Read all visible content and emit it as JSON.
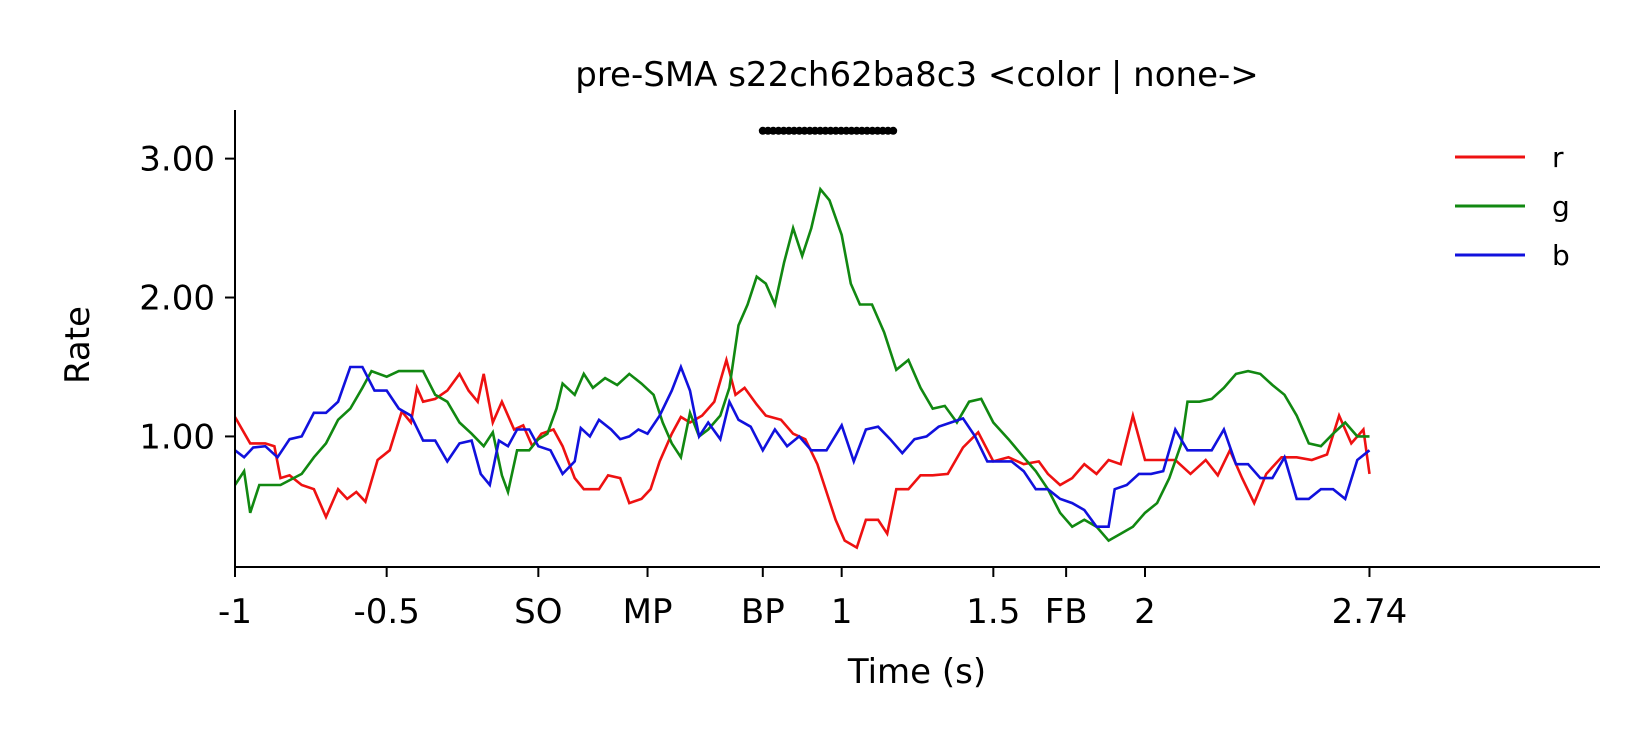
{
  "chart_data": {
    "type": "line",
    "title": "pre-SMA s22ch62ba8c3 <color | none->",
    "xlabel": "Time (s)",
    "ylabel": "Rate",
    "xlim": [
      -1,
      3.5
    ],
    "ylim": [
      0.06,
      3.35
    ],
    "x_ticks": [
      {
        "value": -1,
        "label": "-1"
      },
      {
        "value": -0.5,
        "label": "-0.5"
      },
      {
        "value": 0,
        "label": "SO"
      },
      {
        "value": 0.36,
        "label": "MP"
      },
      {
        "value": 0.74,
        "label": "BP"
      },
      {
        "value": 1,
        "label": "1"
      },
      {
        "value": 1.5,
        "label": "1.5"
      },
      {
        "value": 1.74,
        "label": "FB"
      },
      {
        "value": 2,
        "label": "2"
      },
      {
        "value": 2.74,
        "label": "2.74"
      }
    ],
    "y_ticks": [
      {
        "value": 1.0,
        "label": "1.00"
      },
      {
        "value": 2.0,
        "label": "2.00"
      },
      {
        "value": 3.0,
        "label": "3.00"
      }
    ],
    "grid": false,
    "legend_position": "top-right",
    "significance": {
      "x_start": 0.74,
      "x_end": 1.17,
      "y": 3.2
    },
    "series": [
      {
        "name": "r",
        "color": "#ee1111",
        "points": [
          [
            -1.0,
            1.14
          ],
          [
            -0.95,
            0.95
          ],
          [
            -0.9,
            0.95
          ],
          [
            -0.87,
            0.93
          ],
          [
            -0.85,
            0.7
          ],
          [
            -0.82,
            0.72
          ],
          [
            -0.78,
            0.65
          ],
          [
            -0.74,
            0.62
          ],
          [
            -0.7,
            0.42
          ],
          [
            -0.66,
            0.62
          ],
          [
            -0.63,
            0.55
          ],
          [
            -0.6,
            0.6
          ],
          [
            -0.57,
            0.53
          ],
          [
            -0.53,
            0.83
          ],
          [
            -0.49,
            0.9
          ],
          [
            -0.45,
            1.18
          ],
          [
            -0.42,
            1.1
          ],
          [
            -0.4,
            1.35
          ],
          [
            -0.38,
            1.25
          ],
          [
            -0.34,
            1.27
          ],
          [
            -0.3,
            1.33
          ],
          [
            -0.26,
            1.45
          ],
          [
            -0.23,
            1.33
          ],
          [
            -0.2,
            1.25
          ],
          [
            -0.18,
            1.45
          ],
          [
            -0.15,
            1.1
          ],
          [
            -0.12,
            1.25
          ],
          [
            -0.08,
            1.05
          ],
          [
            -0.05,
            1.08
          ],
          [
            -0.02,
            0.93
          ],
          [
            0.01,
            1.02
          ],
          [
            0.05,
            1.05
          ],
          [
            0.08,
            0.93
          ],
          [
            0.12,
            0.7
          ],
          [
            0.15,
            0.62
          ],
          [
            0.2,
            0.62
          ],
          [
            0.23,
            0.72
          ],
          [
            0.27,
            0.7
          ],
          [
            0.3,
            0.52
          ],
          [
            0.34,
            0.55
          ],
          [
            0.37,
            0.62
          ],
          [
            0.4,
            0.82
          ],
          [
            0.44,
            1.02
          ],
          [
            0.47,
            1.14
          ],
          [
            0.5,
            1.1
          ],
          [
            0.54,
            1.15
          ],
          [
            0.58,
            1.25
          ],
          [
            0.62,
            1.55
          ],
          [
            0.65,
            1.3
          ],
          [
            0.68,
            1.35
          ],
          [
            0.72,
            1.23
          ],
          [
            0.75,
            1.15
          ],
          [
            0.8,
            1.12
          ],
          [
            0.84,
            1.02
          ],
          [
            0.88,
            0.98
          ],
          [
            0.92,
            0.8
          ],
          [
            0.95,
            0.6
          ],
          [
            0.98,
            0.4
          ],
          [
            1.01,
            0.25
          ],
          [
            1.05,
            0.2
          ],
          [
            1.08,
            0.4
          ],
          [
            1.12,
            0.4
          ],
          [
            1.15,
            0.3
          ],
          [
            1.18,
            0.62
          ],
          [
            1.22,
            0.62
          ],
          [
            1.26,
            0.72
          ],
          [
            1.3,
            0.72
          ],
          [
            1.35,
            0.73
          ],
          [
            1.4,
            0.92
          ],
          [
            1.45,
            1.03
          ],
          [
            1.5,
            0.82
          ],
          [
            1.55,
            0.85
          ],
          [
            1.6,
            0.8
          ],
          [
            1.65,
            0.82
          ],
          [
            1.68,
            0.73
          ],
          [
            1.72,
            0.65
          ],
          [
            1.76,
            0.7
          ],
          [
            1.8,
            0.8
          ],
          [
            1.84,
            0.73
          ],
          [
            1.88,
            0.83
          ],
          [
            1.92,
            0.8
          ],
          [
            1.96,
            1.15
          ],
          [
            2.0,
            0.83
          ],
          [
            2.05,
            0.83
          ],
          [
            2.1,
            0.83
          ],
          [
            2.15,
            0.73
          ],
          [
            2.2,
            0.83
          ],
          [
            2.24,
            0.72
          ],
          [
            2.28,
            0.9
          ],
          [
            2.32,
            0.7
          ],
          [
            2.36,
            0.52
          ],
          [
            2.4,
            0.73
          ],
          [
            2.45,
            0.85
          ],
          [
            2.5,
            0.85
          ],
          [
            2.55,
            0.83
          ],
          [
            2.6,
            0.87
          ],
          [
            2.64,
            1.15
          ],
          [
            2.68,
            0.95
          ],
          [
            2.72,
            1.05
          ],
          [
            2.74,
            0.73
          ]
        ]
      },
      {
        "name": "g",
        "color": "#118811",
        "points": [
          [
            -1.0,
            0.65
          ],
          [
            -0.97,
            0.75
          ],
          [
            -0.95,
            0.45
          ],
          [
            -0.92,
            0.65
          ],
          [
            -0.85,
            0.65
          ],
          [
            -0.78,
            0.73
          ],
          [
            -0.74,
            0.85
          ],
          [
            -0.7,
            0.95
          ],
          [
            -0.66,
            1.12
          ],
          [
            -0.62,
            1.2
          ],
          [
            -0.58,
            1.35
          ],
          [
            -0.55,
            1.47
          ],
          [
            -0.5,
            1.43
          ],
          [
            -0.46,
            1.47
          ],
          [
            -0.42,
            1.47
          ],
          [
            -0.38,
            1.47
          ],
          [
            -0.34,
            1.3
          ],
          [
            -0.3,
            1.25
          ],
          [
            -0.26,
            1.1
          ],
          [
            -0.22,
            1.02
          ],
          [
            -0.18,
            0.93
          ],
          [
            -0.15,
            1.03
          ],
          [
            -0.12,
            0.72
          ],
          [
            -0.1,
            0.6
          ],
          [
            -0.07,
            0.9
          ],
          [
            -0.03,
            0.9
          ],
          [
            0.0,
            0.98
          ],
          [
            0.03,
            1.02
          ],
          [
            0.06,
            1.2
          ],
          [
            0.08,
            1.38
          ],
          [
            0.12,
            1.3
          ],
          [
            0.15,
            1.45
          ],
          [
            0.18,
            1.35
          ],
          [
            0.22,
            1.42
          ],
          [
            0.26,
            1.37
          ],
          [
            0.3,
            1.45
          ],
          [
            0.34,
            1.38
          ],
          [
            0.38,
            1.3
          ],
          [
            0.41,
            1.1
          ],
          [
            0.44,
            0.95
          ],
          [
            0.47,
            0.85
          ],
          [
            0.5,
            1.17
          ],
          [
            0.53,
            1.0
          ],
          [
            0.56,
            1.05
          ],
          [
            0.6,
            1.15
          ],
          [
            0.63,
            1.35
          ],
          [
            0.66,
            1.8
          ],
          [
            0.69,
            1.95
          ],
          [
            0.72,
            2.15
          ],
          [
            0.75,
            2.1
          ],
          [
            0.78,
            1.95
          ],
          [
            0.81,
            2.25
          ],
          [
            0.84,
            2.5
          ],
          [
            0.87,
            2.3
          ],
          [
            0.9,
            2.5
          ],
          [
            0.93,
            2.78
          ],
          [
            0.96,
            2.7
          ],
          [
            1.0,
            2.45
          ],
          [
            1.03,
            2.1
          ],
          [
            1.06,
            1.95
          ],
          [
            1.1,
            1.95
          ],
          [
            1.14,
            1.75
          ],
          [
            1.18,
            1.48
          ],
          [
            1.22,
            1.55
          ],
          [
            1.26,
            1.35
          ],
          [
            1.3,
            1.2
          ],
          [
            1.34,
            1.22
          ],
          [
            1.38,
            1.1
          ],
          [
            1.42,
            1.25
          ],
          [
            1.46,
            1.27
          ],
          [
            1.5,
            1.1
          ],
          [
            1.55,
            0.98
          ],
          [
            1.6,
            0.85
          ],
          [
            1.64,
            0.75
          ],
          [
            1.68,
            0.62
          ],
          [
            1.72,
            0.45
          ],
          [
            1.76,
            0.35
          ],
          [
            1.8,
            0.4
          ],
          [
            1.84,
            0.35
          ],
          [
            1.88,
            0.25
          ],
          [
            1.92,
            0.3
          ],
          [
            1.96,
            0.35
          ],
          [
            2.0,
            0.45
          ],
          [
            2.04,
            0.52
          ],
          [
            2.08,
            0.7
          ],
          [
            2.12,
            0.95
          ],
          [
            2.14,
            1.25
          ],
          [
            2.18,
            1.25
          ],
          [
            2.22,
            1.27
          ],
          [
            2.26,
            1.35
          ],
          [
            2.3,
            1.45
          ],
          [
            2.34,
            1.47
          ],
          [
            2.38,
            1.45
          ],
          [
            2.42,
            1.37
          ],
          [
            2.46,
            1.3
          ],
          [
            2.5,
            1.15
          ],
          [
            2.54,
            0.95
          ],
          [
            2.58,
            0.93
          ],
          [
            2.62,
            1.02
          ],
          [
            2.66,
            1.1
          ],
          [
            2.7,
            1.0
          ],
          [
            2.74,
            1.0
          ]
        ]
      },
      {
        "name": "b",
        "color": "#1111dd",
        "points": [
          [
            -1.0,
            0.9
          ],
          [
            -0.97,
            0.85
          ],
          [
            -0.94,
            0.92
          ],
          [
            -0.9,
            0.93
          ],
          [
            -0.86,
            0.85
          ],
          [
            -0.82,
            0.98
          ],
          [
            -0.78,
            1.0
          ],
          [
            -0.74,
            1.17
          ],
          [
            -0.7,
            1.17
          ],
          [
            -0.66,
            1.25
          ],
          [
            -0.62,
            1.5
          ],
          [
            -0.58,
            1.5
          ],
          [
            -0.54,
            1.33
          ],
          [
            -0.5,
            1.33
          ],
          [
            -0.46,
            1.2
          ],
          [
            -0.42,
            1.15
          ],
          [
            -0.38,
            0.97
          ],
          [
            -0.34,
            0.97
          ],
          [
            -0.3,
            0.82
          ],
          [
            -0.26,
            0.95
          ],
          [
            -0.22,
            0.97
          ],
          [
            -0.19,
            0.73
          ],
          [
            -0.16,
            0.65
          ],
          [
            -0.13,
            0.97
          ],
          [
            -0.1,
            0.93
          ],
          [
            -0.07,
            1.05
          ],
          [
            -0.03,
            1.05
          ],
          [
            0.0,
            0.93
          ],
          [
            0.04,
            0.9
          ],
          [
            0.08,
            0.73
          ],
          [
            0.12,
            0.82
          ],
          [
            0.14,
            1.06
          ],
          [
            0.17,
            1.0
          ],
          [
            0.2,
            1.12
          ],
          [
            0.24,
            1.05
          ],
          [
            0.27,
            0.98
          ],
          [
            0.3,
            1.0
          ],
          [
            0.33,
            1.05
          ],
          [
            0.36,
            1.02
          ],
          [
            0.4,
            1.15
          ],
          [
            0.44,
            1.33
          ],
          [
            0.47,
            1.5
          ],
          [
            0.5,
            1.33
          ],
          [
            0.53,
            1.0
          ],
          [
            0.56,
            1.1
          ],
          [
            0.6,
            0.98
          ],
          [
            0.63,
            1.25
          ],
          [
            0.66,
            1.12
          ],
          [
            0.7,
            1.07
          ],
          [
            0.74,
            0.9
          ],
          [
            0.78,
            1.05
          ],
          [
            0.82,
            0.93
          ],
          [
            0.86,
            1.0
          ],
          [
            0.9,
            0.9
          ],
          [
            0.95,
            0.9
          ],
          [
            1.0,
            1.08
          ],
          [
            1.04,
            0.82
          ],
          [
            1.08,
            1.05
          ],
          [
            1.12,
            1.07
          ],
          [
            1.16,
            0.98
          ],
          [
            1.2,
            0.88
          ],
          [
            1.24,
            0.98
          ],
          [
            1.28,
            1.0
          ],
          [
            1.32,
            1.07
          ],
          [
            1.36,
            1.1
          ],
          [
            1.4,
            1.13
          ],
          [
            1.44,
            1.0
          ],
          [
            1.48,
            0.82
          ],
          [
            1.52,
            0.82
          ],
          [
            1.56,
            0.82
          ],
          [
            1.6,
            0.75
          ],
          [
            1.64,
            0.62
          ],
          [
            1.68,
            0.62
          ],
          [
            1.72,
            0.55
          ],
          [
            1.76,
            0.52
          ],
          [
            1.8,
            0.47
          ],
          [
            1.84,
            0.35
          ],
          [
            1.88,
            0.35
          ],
          [
            1.9,
            0.62
          ],
          [
            1.94,
            0.65
          ],
          [
            1.98,
            0.73
          ],
          [
            2.02,
            0.73
          ],
          [
            2.06,
            0.75
          ],
          [
            2.1,
            1.05
          ],
          [
            2.14,
            0.9
          ],
          [
            2.18,
            0.9
          ],
          [
            2.22,
            0.9
          ],
          [
            2.26,
            1.05
          ],
          [
            2.3,
            0.8
          ],
          [
            2.34,
            0.8
          ],
          [
            2.38,
            0.7
          ],
          [
            2.42,
            0.7
          ],
          [
            2.46,
            0.85
          ],
          [
            2.5,
            0.55
          ],
          [
            2.54,
            0.55
          ],
          [
            2.58,
            0.62
          ],
          [
            2.62,
            0.62
          ],
          [
            2.66,
            0.55
          ],
          [
            2.7,
            0.83
          ],
          [
            2.74,
            0.9
          ]
        ]
      }
    ]
  }
}
